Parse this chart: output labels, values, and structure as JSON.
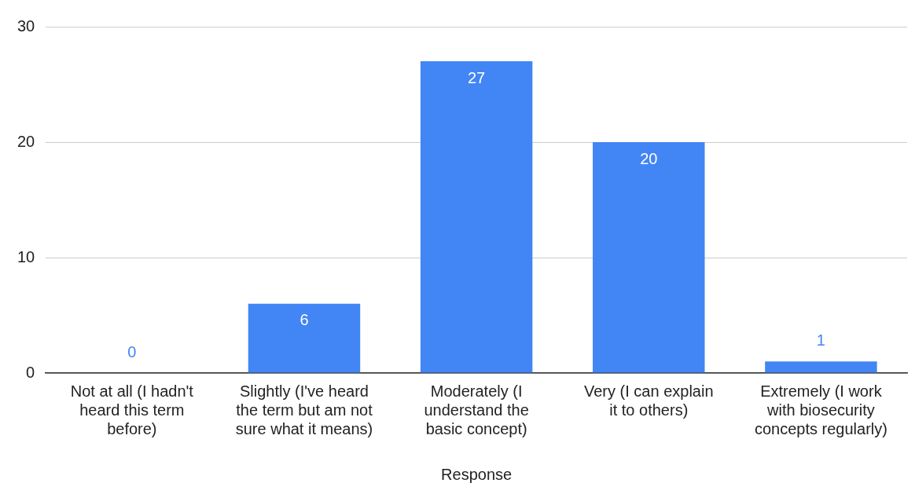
{
  "chart_data": {
    "type": "bar",
    "xlabel": "Response",
    "categories": [
      "Not at all (I hadn't heard this term before)",
      "Slightly (I've heard the term but am not sure what it means)",
      "Moderately (I understand the basic concept)",
      "Very (I can explain it to others)",
      "Extremely (I work with biosecurity concepts regularly)"
    ],
    "values": [
      0,
      6,
      27,
      20,
      1
    ],
    "color": "#4285f4",
    "ylim": [
      0,
      30
    ],
    "yticks": [
      0,
      10,
      20,
      30
    ],
    "grid": "y",
    "data_labels": true
  }
}
